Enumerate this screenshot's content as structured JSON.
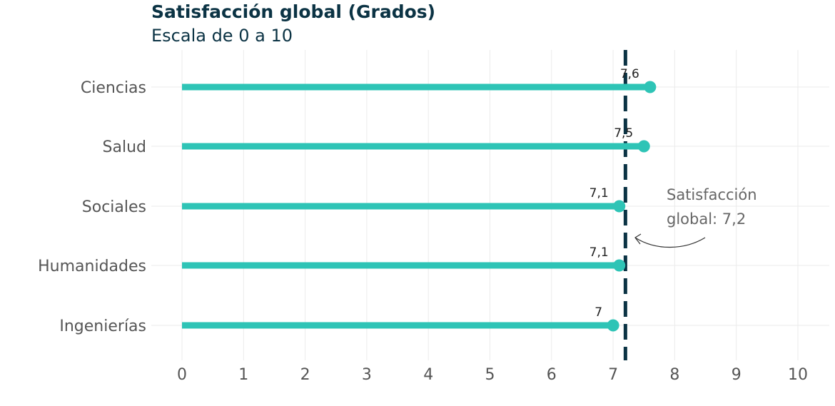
{
  "chart_data": {
    "type": "lollipop",
    "title": "Satisfacción global (Grados)",
    "subtitle": "Escala de 0 a 10",
    "categories": [
      "Ciencias",
      "Salud",
      "Sociales",
      "Humanidades",
      "Ingenierías"
    ],
    "values": [
      7.6,
      7.5,
      7.1,
      7.1,
      7.0
    ],
    "value_labels": [
      "7,6",
      "7,5",
      "7,1",
      "7,1",
      "7"
    ],
    "reference_line": {
      "value": 7.2,
      "label_line1": "Satisfacción",
      "label_line2": "global: 7,2"
    },
    "xlim": [
      0,
      10
    ],
    "x_ticks": [
      "0",
      "1",
      "2",
      "3",
      "4",
      "5",
      "6",
      "7",
      "8",
      "9",
      "10"
    ],
    "grid": true,
    "colors": {
      "lollipop": "#2ec4b6",
      "reference": "#0b3344",
      "title": "#0b3344",
      "axis_text": "#555555"
    }
  }
}
